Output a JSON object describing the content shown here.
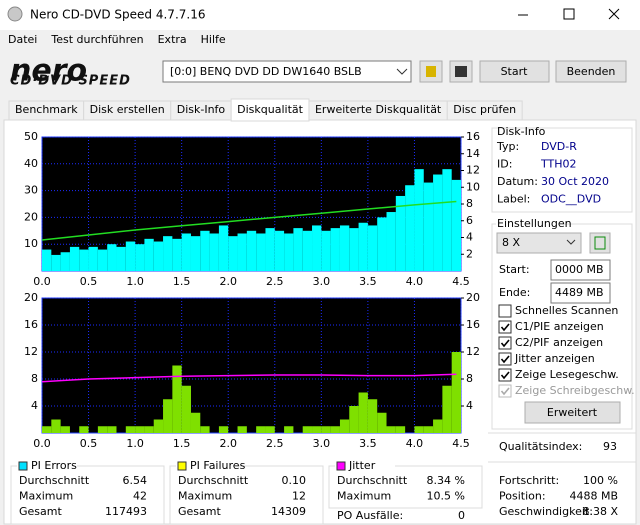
{
  "window": {
    "title": "Nero CD-DVD Speed 4.7.7.16"
  },
  "menu": [
    "Datei",
    "Test durchführen",
    "Extra",
    "Hilfe"
  ],
  "logo": {
    "brand": "nero",
    "product": "CD·DVD SPEED"
  },
  "toolbar": {
    "drive": "[0:0]  BENQ DVD DD DW1640 BSLB",
    "start": "Start",
    "exit": "Beenden"
  },
  "tabs": [
    "Benchmark",
    "Disk erstellen",
    "Disk-Info",
    "Diskqualität",
    "Erweiterte Diskqualität",
    "Disc prüfen"
  ],
  "active_tab": 3,
  "chart_data": [
    {
      "type": "bar",
      "grid": true,
      "background": "#000000",
      "xlim": [
        0,
        4.5
      ],
      "xticks": [
        {
          "value": 0,
          "label": "0.0"
        },
        0.5,
        {
          "value": 1,
          "label": "1.0"
        },
        1.5,
        {
          "value": 2,
          "label": "2.0"
        },
        2.5,
        {
          "value": 3,
          "label": "3.0"
        },
        3.5,
        {
          "value": 4,
          "label": "4.0"
        },
        4.5
      ],
      "ylim": [
        0,
        50
      ],
      "yticks": [
        10,
        20,
        30,
        40,
        50
      ],
      "y2lim": [
        0,
        16
      ],
      "y2ticks": [
        2,
        4,
        6,
        8,
        10,
        12,
        14,
        16
      ],
      "series": [
        {
          "type": "bar",
          "color": "#00ffff",
          "x": [
            0,
            0.1,
            0.2,
            0.3,
            0.4,
            0.5,
            0.6,
            0.7,
            0.8,
            0.9,
            1,
            1.1,
            1.2,
            1.3,
            1.4,
            1.5,
            1.6,
            1.7,
            1.8,
            1.9,
            2,
            2.1,
            2.2,
            2.3,
            2.4,
            2.5,
            2.6,
            2.7,
            2.8,
            2.9,
            3,
            3.1,
            3.2,
            3.3,
            3.4,
            3.5,
            3.6,
            3.7,
            3.8,
            3.9,
            4,
            4.1,
            4.2,
            4.3,
            4.4
          ],
          "values": [
            8,
            6,
            7,
            9,
            8,
            9,
            8,
            10,
            9,
            11,
            10,
            12,
            11,
            13,
            12,
            14,
            13,
            15,
            14,
            17,
            13,
            14,
            15,
            14,
            16,
            15,
            14,
            16,
            15,
            17,
            15,
            16,
            17,
            16,
            18,
            17,
            20,
            22,
            28,
            32,
            38,
            33,
            36,
            38,
            34
          ]
        },
        {
          "type": "line",
          "axis": "y2",
          "color": "#22dd22",
          "x": [
            0,
            0.5,
            1,
            1.5,
            2,
            2.5,
            3,
            3.5,
            4,
            4.45
          ],
          "values": [
            3.7,
            4.3,
            4.9,
            5.4,
            5.9,
            6.4,
            6.9,
            7.4,
            7.9,
            8.3
          ]
        }
      ]
    },
    {
      "type": "bar",
      "grid": true,
      "background": "#000000",
      "xlim": [
        0,
        4.5
      ],
      "xticks": [
        {
          "value": 0,
          "label": "0.0"
        },
        0.5,
        {
          "value": 1,
          "label": "1.0"
        },
        1.5,
        {
          "value": 2,
          "label": "2.0"
        },
        2.5,
        {
          "value": 3,
          "label": "3.0"
        },
        3.5,
        {
          "value": 4,
          "label": "4.0"
        },
        4.5
      ],
      "ylim": [
        0,
        20
      ],
      "yticks": [
        4,
        8,
        12,
        16,
        20
      ],
      "y2lim": [
        0,
        20
      ],
      "y2ticks": [
        4,
        8,
        12,
        16,
        20
      ],
      "series": [
        {
          "type": "bar",
          "color": "#7fe000",
          "x": [
            0,
            0.1,
            0.2,
            0.3,
            0.4,
            0.5,
            0.6,
            0.7,
            0.8,
            0.9,
            1,
            1.1,
            1.2,
            1.3,
            1.4,
            1.5,
            1.6,
            1.7,
            1.8,
            1.9,
            2,
            2.1,
            2.2,
            2.3,
            2.4,
            2.5,
            2.6,
            2.7,
            2.8,
            2.9,
            3,
            3.1,
            3.2,
            3.3,
            3.4,
            3.5,
            3.6,
            3.7,
            3.8,
            3.9,
            4,
            4.1,
            4.2,
            4.3,
            4.4
          ],
          "values": [
            1,
            2,
            1,
            0,
            1,
            0,
            1,
            1,
            0,
            1,
            1,
            1,
            2,
            5,
            10,
            7,
            3,
            1,
            0,
            1,
            0,
            1,
            0,
            1,
            1,
            0,
            1,
            0,
            1,
            1,
            1,
            1,
            2,
            4,
            6,
            5,
            3,
            1,
            1,
            0,
            1,
            1,
            2,
            7,
            12
          ]
        },
        {
          "type": "line",
          "axis": "y2",
          "color": "#ff00ff",
          "x": [
            0,
            0.5,
            1,
            1.5,
            2,
            2.5,
            3,
            3.5,
            4,
            4.45
          ],
          "values": [
            7.6,
            8,
            8.2,
            8.4,
            8.5,
            8.6,
            8.6,
            8.5,
            8.5,
            8.7
          ]
        }
      ]
    }
  ],
  "disk_info": {
    "title": "Disk-Info",
    "rows": [
      [
        "Typ:",
        "DVD-R"
      ],
      [
        "ID:",
        "TTH02"
      ],
      [
        "Datum:",
        "30 Oct 2020"
      ],
      [
        "Label:",
        "ODC__DVD"
      ]
    ]
  },
  "settings": {
    "title": "Einstellungen",
    "speed": "8 X",
    "start_label": "Start:",
    "start": "0000 MB",
    "end_label": "Ende:",
    "end": "4489 MB",
    "options": [
      {
        "label": "Schnelles Scannen",
        "checked": false,
        "enabled": true
      },
      {
        "label": "C1/PIE anzeigen",
        "checked": true,
        "enabled": true
      },
      {
        "label": "C2/PIF anzeigen",
        "checked": true,
        "enabled": true
      },
      {
        "label": "Jitter anzeigen",
        "checked": true,
        "enabled": true
      },
      {
        "label": "Zeige Lesegeschw.",
        "checked": true,
        "enabled": true
      },
      {
        "label": "Zeige Schreibgeschw.",
        "checked": true,
        "enabled": false
      }
    ],
    "advanced": "Erweitert"
  },
  "quality": {
    "label": "Qualitätsindex:",
    "value": "93"
  },
  "progress": [
    [
      "Fortschritt:",
      "100 %"
    ],
    [
      "Position:",
      "4488 MB"
    ],
    [
      "Geschwindigkeit:",
      "8.38 X"
    ]
  ],
  "stats": [
    {
      "title": "PI Errors",
      "color": "#00e0ff",
      "rows": [
        [
          "Durchschnitt",
          "6.54"
        ],
        [
          "Maximum",
          "42"
        ],
        [
          "Gesamt",
          "117493"
        ]
      ]
    },
    {
      "title": "PI Failures",
      "color": "#ffff00",
      "rows": [
        [
          "Durchschnitt",
          "0.10"
        ],
        [
          "Maximum",
          "12"
        ],
        [
          "Gesamt",
          "14309"
        ]
      ]
    },
    {
      "title": "Jitter",
      "color": "#ff00ff",
      "rows": [
        [
          "Durchschnitt",
          "8.34 %"
        ],
        [
          "Maximum",
          "10.5 %"
        ]
      ]
    }
  ],
  "po_failures": {
    "label": "PO Ausfälle:",
    "value": "0"
  }
}
